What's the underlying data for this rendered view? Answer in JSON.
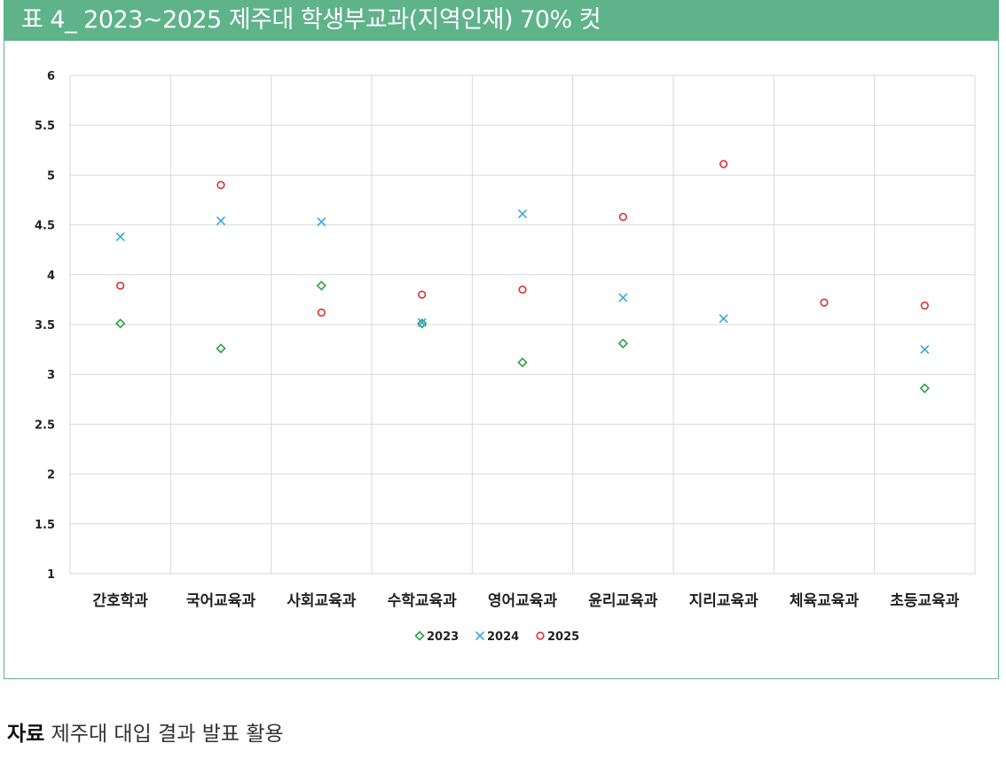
{
  "title": "표 4_ 2023~2025 제주대 학생부교과(지역인재) 70% 컷",
  "source": {
    "label": "자료",
    "text": " 제주대 대입 결과 발표 활용"
  },
  "colors": {
    "header": "#5fb38a",
    "s2023": "#2ea043",
    "s2024": "#3aa8dc",
    "s2025": "#e03030"
  },
  "chart_data": {
    "type": "scatter",
    "categories": [
      "간호학과",
      "국어교육과",
      "사회교육과",
      "수학교육과",
      "영어교육과",
      "윤리교육과",
      "지리교육과",
      "체육교육과",
      "초등교육과"
    ],
    "ylim": [
      1,
      6
    ],
    "yticks": [
      1,
      1.5,
      2,
      2.5,
      3,
      3.5,
      4,
      4.5,
      5,
      5.5,
      6
    ],
    "ytick_labels": [
      "1",
      "1.5",
      "2",
      "2.5",
      "3",
      "3.5",
      "4",
      "4.5",
      "5",
      "5.5",
      "6"
    ],
    "grid": true,
    "legend_position": "bottom",
    "series": [
      {
        "name": "2023",
        "marker": "diamond",
        "values": [
          3.51,
          3.26,
          3.89,
          3.51,
          3.12,
          3.31,
          null,
          null,
          2.86
        ]
      },
      {
        "name": "2024",
        "marker": "x",
        "values": [
          4.38,
          4.54,
          4.53,
          3.52,
          4.61,
          3.77,
          3.56,
          null,
          3.25
        ]
      },
      {
        "name": "2025",
        "marker": "circle",
        "values": [
          3.89,
          4.9,
          3.62,
          3.8,
          3.85,
          4.58,
          5.11,
          3.72,
          3.69
        ]
      }
    ]
  }
}
